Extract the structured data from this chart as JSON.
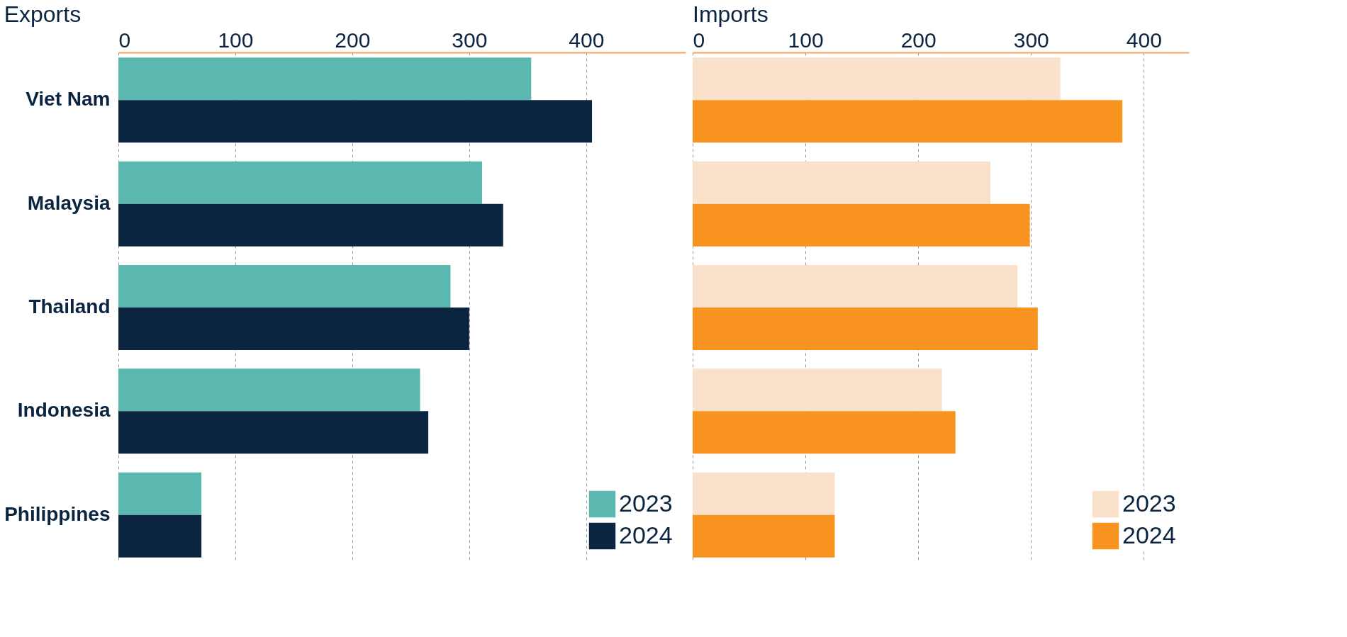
{
  "chart_data": [
    {
      "type": "bar",
      "orientation": "horizontal",
      "title": "Exports",
      "categories": [
        "Viet Nam",
        "Malaysia",
        "Thailand",
        "Indonesia",
        "Philippines"
      ],
      "series": [
        {
          "name": "2023",
          "color": "#5bb8b0",
          "values": [
            353,
            311,
            284,
            258,
            71
          ]
        },
        {
          "name": "2024",
          "color": "#0b2540",
          "values": [
            405,
            329,
            300,
            265,
            71
          ]
        }
      ],
      "xlim": [
        0,
        485
      ],
      "xticks": [
        0,
        100,
        200,
        300,
        400
      ],
      "grid": "x",
      "legend": "bottom right"
    },
    {
      "type": "bar",
      "orientation": "horizontal",
      "title": "Imports",
      "categories": [
        null,
        null,
        null,
        null,
        null
      ],
      "series": [
        {
          "name": "2023",
          "color": "#f9e1cc",
          "values": [
            326,
            264,
            288,
            221,
            126
          ]
        },
        {
          "name": "2024",
          "color": "#f7931e",
          "values": [
            381,
            299,
            306,
            233,
            126
          ]
        }
      ],
      "xlim": [
        0,
        440
      ],
      "xticks": [
        0,
        100,
        200,
        300,
        400
      ],
      "grid": "x",
      "legend": "bottom right",
      "tick_labels": "x"
    }
  ]
}
